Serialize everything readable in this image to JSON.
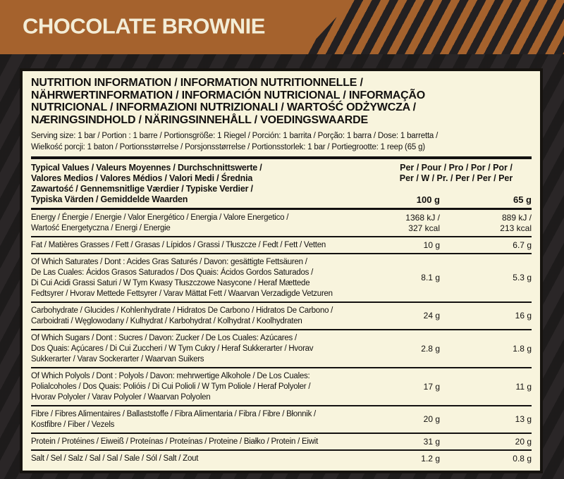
{
  "colors": {
    "header_brown": "#a5622d",
    "stripe_black": "#232021",
    "background_dark": "#282425",
    "panel_cream": "#f8f4dd",
    "ink": "#131110"
  },
  "header": {
    "product_name": "CHOCOLATE BROWNIE"
  },
  "panel": {
    "title": "NUTRITION INFORMATION / INFORMATION NUTRITIONNELLE /\nNÄHRWERTINFORMATION / INFORMACIÓN NUTRICIONAL / INFORMAÇÃO\nNUTRICIONAL / INFORMAZIONI NUTRIZIONALI / WARTOŚĆ ODŻYWCZA /\nNÆRINGSINDHOLD / NÄRINGSINNEHÅLL / VOEDINGSWAARDE",
    "serving": "Serving size: 1 bar / Portion : 1 barre / Portionsgröße: 1 Riegel / Porción: 1 barrita / Porção: 1 barra / Dose: 1 barretta /\nWielkość porcji: 1 baton / Portionsstørrelse / Porsjonsstørrelse / Portionsstorlek: 1 bar / Portiegrootte: 1 reep (65 g)",
    "table": {
      "header": {
        "label": "Typical Values / Valeurs Moyennes / Durchschnittswerte /\nValores Medios / Valores Médios / Valori Medi / Średnia\nZawartość / Gennemsnitlige Værdier / Typiske Verdier /\nTypiska Värden / Gemiddelde Waarden",
        "per": "Per / Pour / Pro / Por / Por /\nPer / W / Pr. / Per / Per / Per",
        "col1": "100 g",
        "col2": "65 g"
      },
      "rows": [
        {
          "label": "Energy / Énergie / Energie / Valor Energético / Energia / Valore Energetico /\nWartość Energetyczna / Energi / Energie",
          "per100": "1368 kJ /\n327 kcal",
          "per65": "889 kJ /\n213 kcal"
        },
        {
          "label": "Fat / Matières Grasses / Fett / Grasas / Lípidos / Grassi / Tłuszcze / Fedt / Fett / Vetten",
          "per100": "10 g",
          "per65": "6.7 g"
        },
        {
          "label": "Of Which Saturates / Dont : Acides Gras Saturés / Davon: gesättigte Fettsäuren /\nDe Las Cuales: Ácidos Grasos Saturados / Dos Quais: Ácidos Gordos Saturados /\nDi Cui Acidi Grassi Saturi / W Tym Kwasy Tłuszczowe Nasycone / Heraf Mættede\nFedtsyrer / Hvorav Mettede Fettsyrer / Varav Mättat Fett / Waarvan Verzadigde Vetzuren",
          "per100": "8.1 g",
          "per65": "5.3 g"
        },
        {
          "label": "Carbohydrate / Glucides / Kohlenhydrate / Hidratos De Carbono / Hidratos De Carbono /\nCarboidrati / Węglowodany / Kulhydrat / Karbohydrat / Kolhydrat / Koolhydraten",
          "per100": "24 g",
          "per65": "16 g"
        },
        {
          "label": "Of Which Sugars / Dont : Sucres / Davon: Zucker / De Los Cuales: Azúcares /\nDos Quais: Açúcares / Di Cui Zuccheri / W Tym Cukry / Heraf Sukkerarter / Hvorav\nSukkerarter / Varav Sockerarter / Waarvan Suikers",
          "per100": "2.8 g",
          "per65": "1.8 g"
        },
        {
          "label": "Of Which Polyols / Dont : Polyols / Davon: mehrwertige Alkohole / De Los Cuales:\nPolialcoholes / Dos Quais: Polióis / Di Cui Polioli / W Tym Poliole / Heraf Polyoler /\nHvorav Polyoler / Varav Polyoler / Waarvan Polyolen",
          "per100": "17 g",
          "per65": "11 g"
        },
        {
          "label": "Fibre / Fibres Alimentaires / Ballaststoffe / Fibra Alimentaria / Fibra / Fibre / Błonnik /\nKostfibre / Fiber / Vezels",
          "per100": "20 g",
          "per65": "13 g"
        },
        {
          "label": "Protein / Protéines / Eiweiß / Proteínas / Proteínas / Proteine / Białko / Protein / Eiwit",
          "per100": "31 g",
          "per65": "20 g"
        },
        {
          "label": "Salt / Sel / Salz / Sal / Sal / Sale / Sól / Salt / Zout",
          "per100": "1.2 g",
          "per65": "0.8 g"
        }
      ]
    }
  }
}
